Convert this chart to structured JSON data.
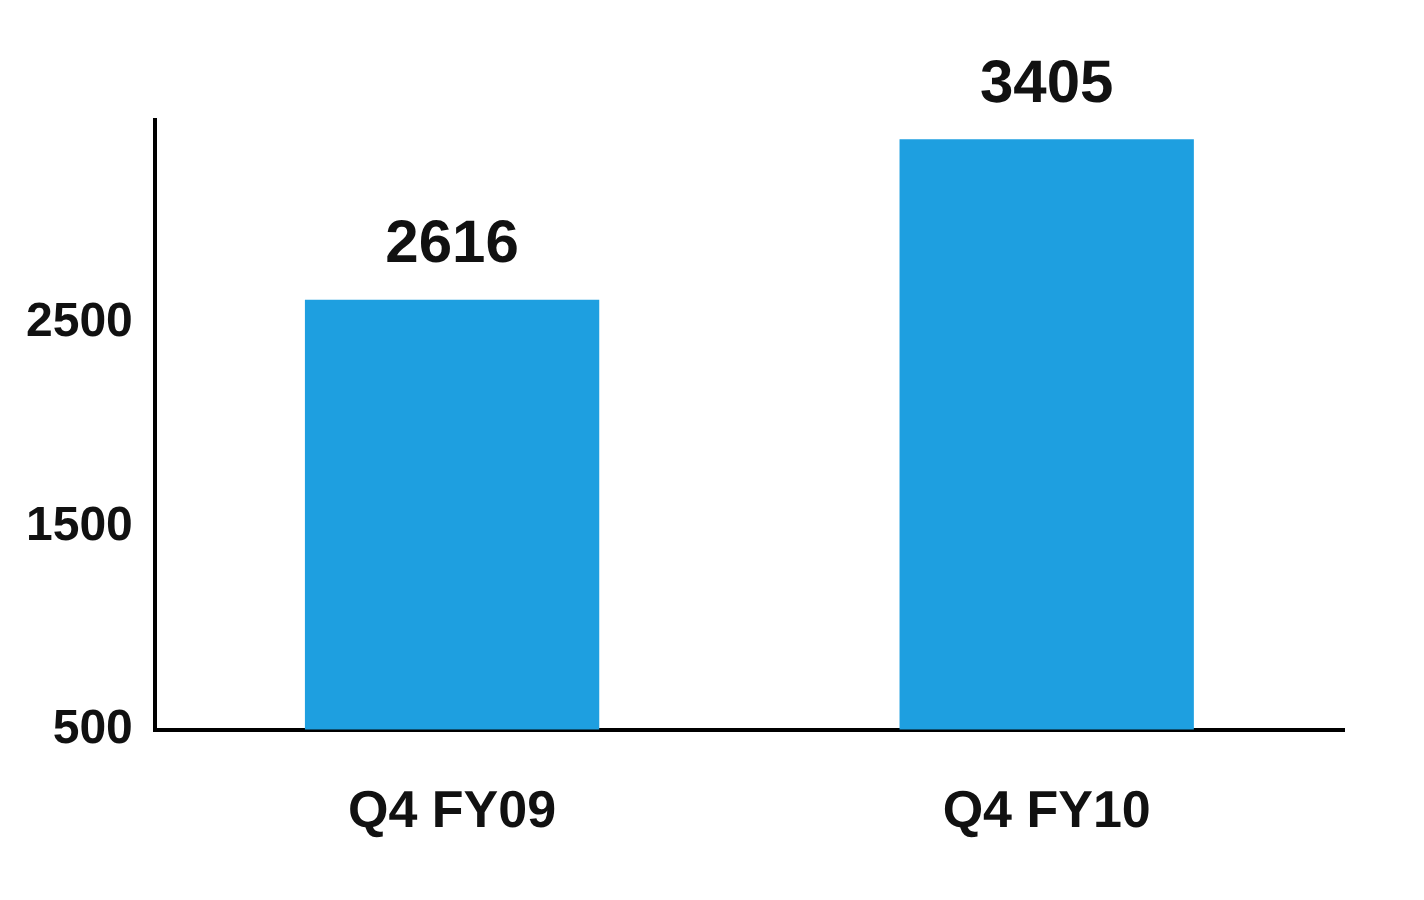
{
  "chart_data": {
    "type": "bar",
    "categories": [
      "Q4 FY09",
      "Q4 FY10"
    ],
    "values": [
      2616,
      3405
    ],
    "color": "#1e9fe0",
    "ylim": [
      500,
      3500
    ],
    "yticks": [
      500,
      1500,
      2500
    ],
    "data_labels": true,
    "grid": false,
    "legend": false
  }
}
